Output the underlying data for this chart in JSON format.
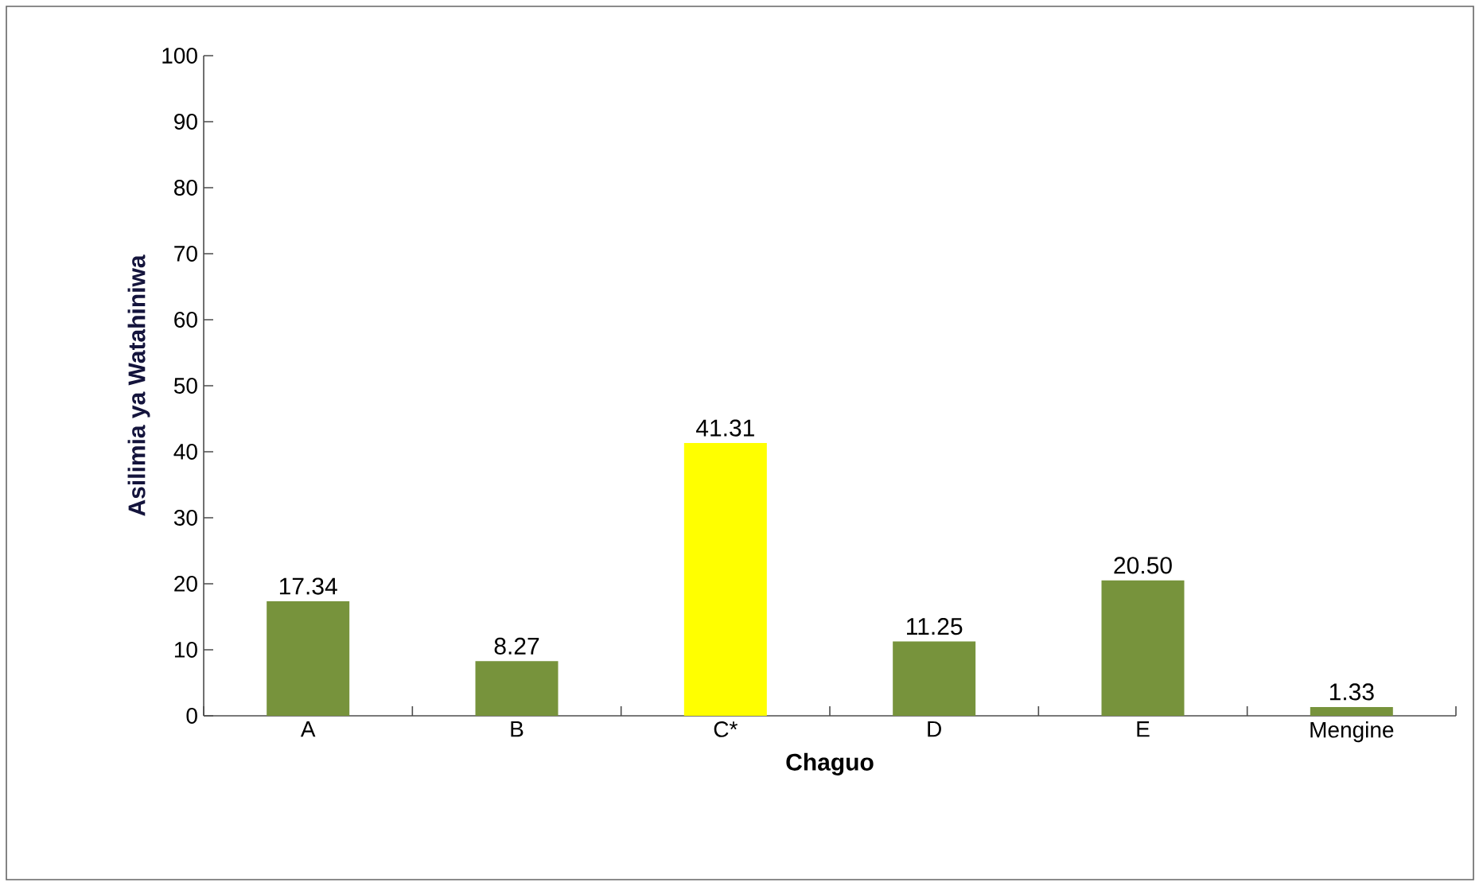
{
  "chart_data": {
    "type": "bar",
    "xlabel": "Chaguo",
    "ylabel": "Asilimia ya Watahiniwa",
    "categories": [
      "A",
      "B",
      "C*",
      "D",
      "E",
      "Mengine"
    ],
    "values": [
      17.34,
      8.27,
      41.31,
      11.25,
      20.5,
      1.33
    ],
    "value_labels": [
      "17.34",
      "8.27",
      "41.31",
      "11.25",
      "20.50",
      "1.33"
    ],
    "colors": [
      "#77933c",
      "#77933c",
      "#ffff00",
      "#77933c",
      "#77933c",
      "#77933c"
    ],
    "ylim": [
      0,
      100
    ],
    "yticks": [
      0,
      10,
      20,
      30,
      40,
      50,
      60,
      70,
      80,
      90,
      100
    ]
  }
}
